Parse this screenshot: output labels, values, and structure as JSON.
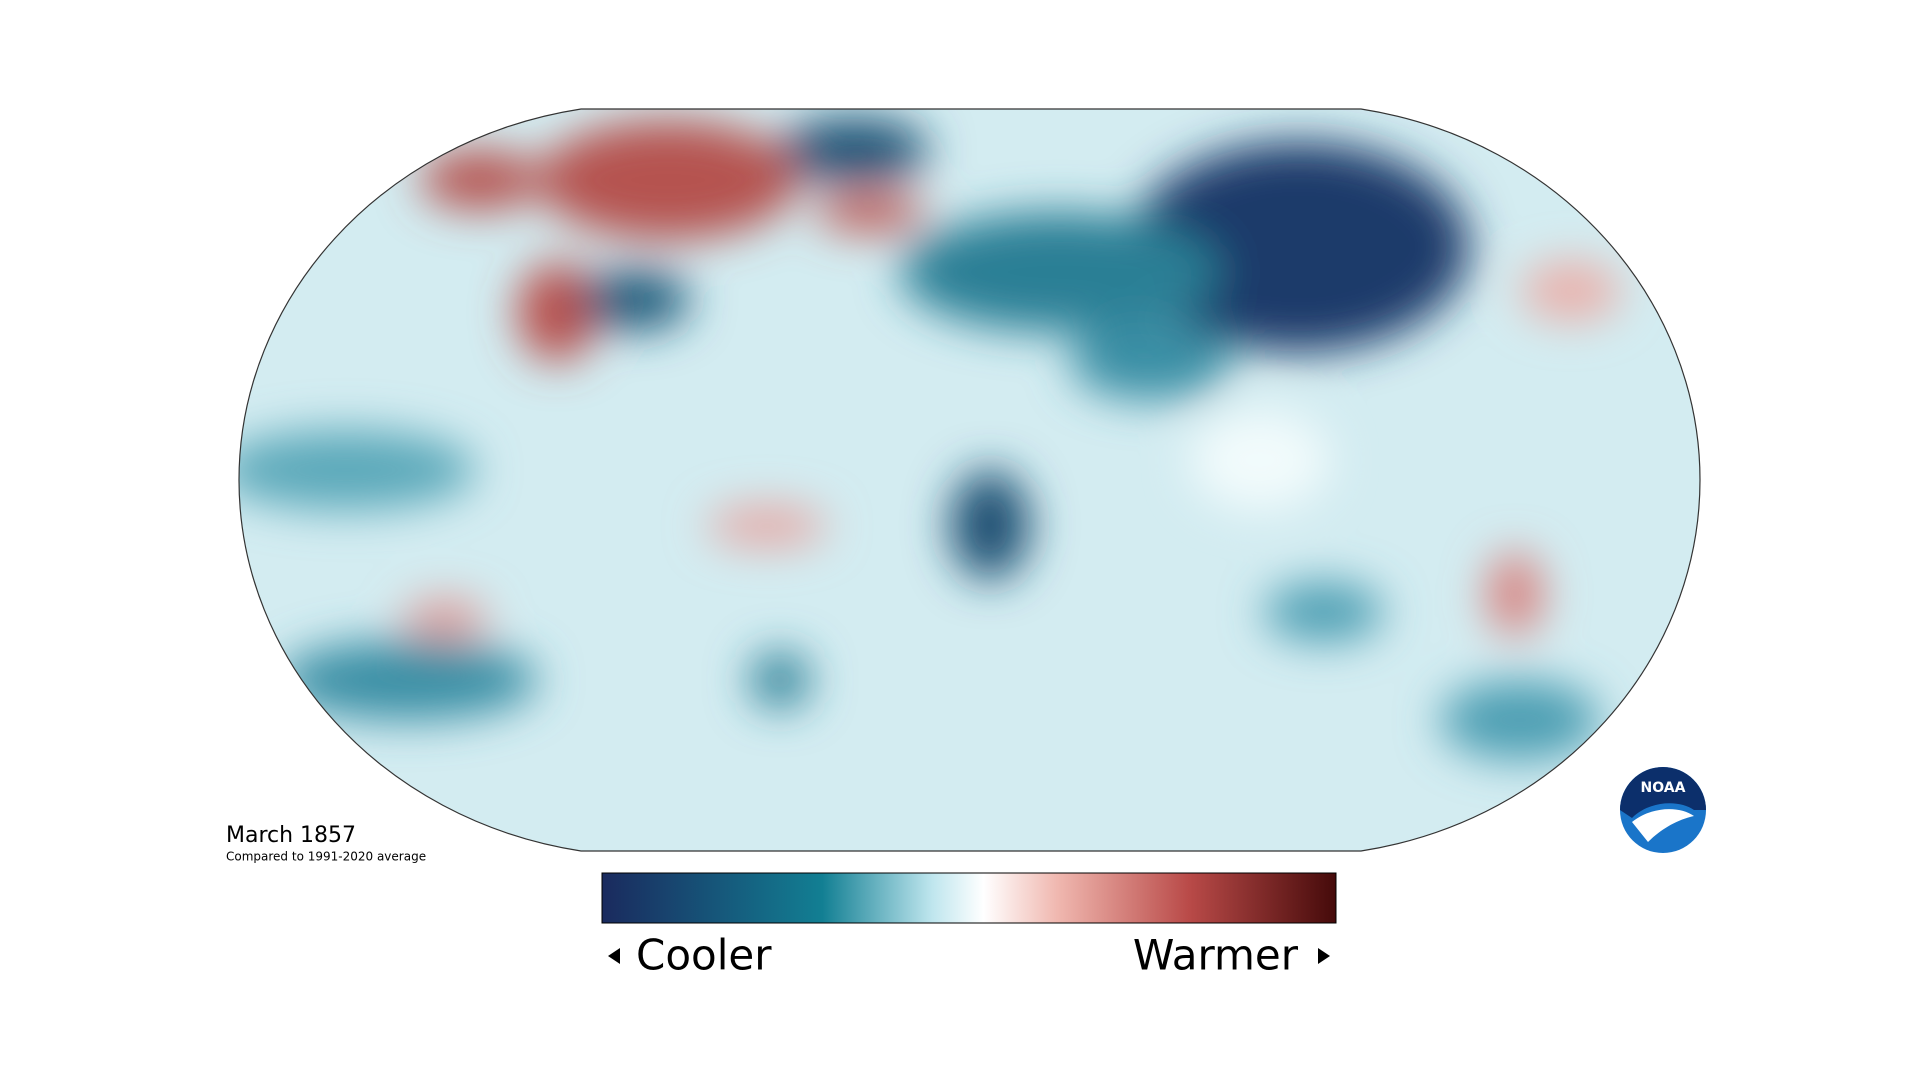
{
  "title": "March 1857",
  "subtitle": "Compared to 1991-2020 average",
  "legend": {
    "low_label": "Cooler",
    "high_label": "Warmer"
  },
  "logo": {
    "text": "NOAA"
  }
}
